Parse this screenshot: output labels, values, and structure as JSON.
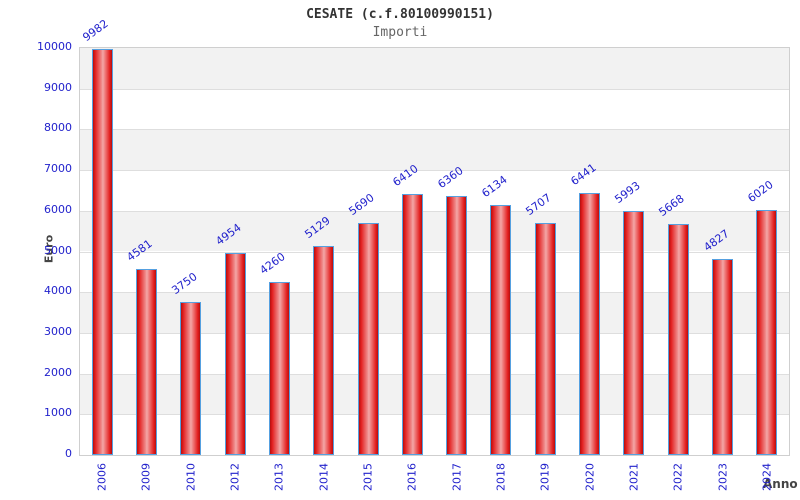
{
  "header": {
    "title": "CESATE (c.f.80100990151)",
    "subtitle": "Importi"
  },
  "chart_data": {
    "type": "bar",
    "title": "CESATE (c.f.80100990151)",
    "subtitle": "Importi",
    "xlabel": "Anno",
    "ylabel": "Euro",
    "categories": [
      "2006",
      "2009",
      "2010",
      "2012",
      "2013",
      "2014",
      "2015",
      "2016",
      "2017",
      "2018",
      "2019",
      "2020",
      "2021",
      "2022",
      "2023",
      "2024"
    ],
    "values": [
      9982,
      4581,
      3750,
      4954,
      4260,
      5129,
      5690,
      6410,
      6360,
      6134,
      5707,
      6441,
      5993,
      5668,
      4827,
      6020
    ],
    "ylim": [
      0,
      10000
    ],
    "ytick_step": 1000,
    "yticks": [
      0,
      1000,
      2000,
      3000,
      4000,
      5000,
      6000,
      7000,
      8000,
      9000,
      10000
    ],
    "grid": "horizontal-bands",
    "legend_position": "none",
    "colors": {
      "bar_fill": "#e32020",
      "bar_border": "#55a0e0",
      "value_label": "#2222cc",
      "tick_label": "#2222cc",
      "band_shaded": "#f2f2f2",
      "band_plain": "#ffffff",
      "gridline": "#dedede",
      "title": "#333333",
      "subtitle": "#666666",
      "axis_title": "#444444"
    }
  }
}
